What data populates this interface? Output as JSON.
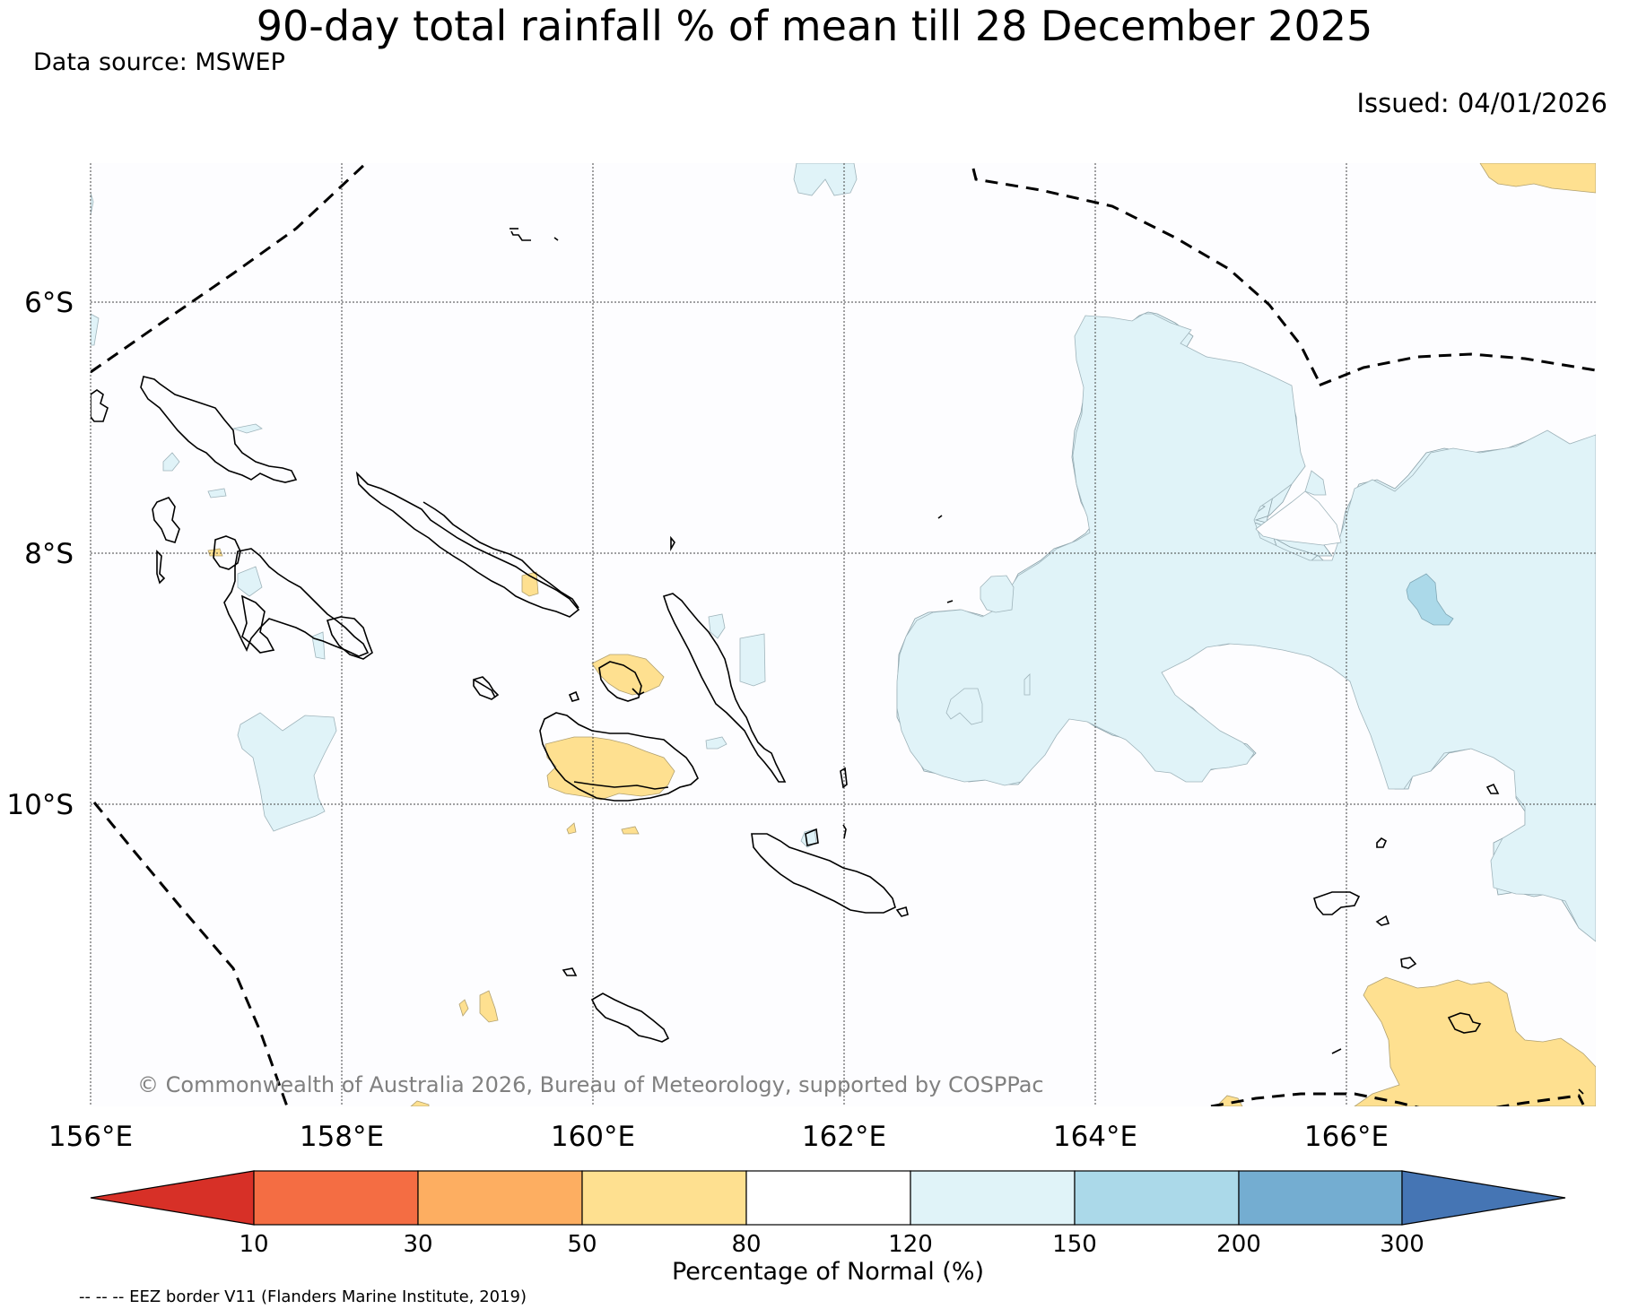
{
  "title": "90-day total rainfall % of mean till 28 December 2025",
  "data_source": "Data source: MSWEP",
  "issued": "Issued: 04/01/2026",
  "copyright": "© Commonwealth of Australia 2026, Bureau of Meteorology, supported by COSPPac",
  "map": {
    "lon_range": [
      156,
      168
    ],
    "lat_range": [
      -4.9,
      -12.4
    ],
    "lat_labels": [
      "6°S",
      "8°S",
      "10°S"
    ],
    "lon_labels": [
      "156°E",
      "158°E",
      "160°E",
      "162°E",
      "164°E",
      "166°E"
    ],
    "background_color": "#fdfdff"
  },
  "colorbar": {
    "label": "Percentage of Normal (%)",
    "ticks": [
      "10",
      "30",
      "50",
      "80",
      "120",
      "150",
      "200",
      "300"
    ],
    "colors": {
      "below_10": "#d73027",
      "10_30": "#f46d43",
      "30_50": "#fdae61",
      "50_80": "#fee090",
      "80_120": "#ffffff",
      "120_150": "#e0f3f8",
      "150_200": "#abd9e9",
      "200_300": "#74add1",
      "above_300": "#4575b4"
    }
  },
  "legend_note": "-- -- -- EEZ border V11 (Flanders Marine Institute, 2019)"
}
